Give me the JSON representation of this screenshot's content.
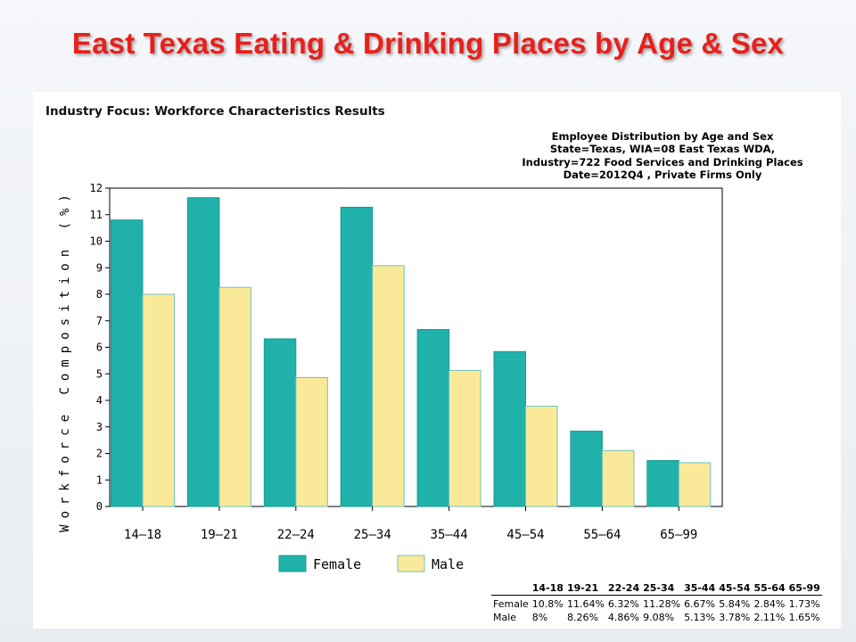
{
  "slide": {
    "title": "East Texas Eating & Drinking Places by Age & Sex"
  },
  "panel": {
    "heading": "Industry Focus: Workforce Characteristics Results"
  },
  "chart_data": {
    "type": "bar",
    "title_lines": [
      "Employee Distribution by Age and Sex",
      "State=Texas, WIA=08 East Texas WDA,",
      "Industry=722 Food Services and Drinking Places",
      "Date=2012Q4 , Private Firms Only"
    ],
    "categories": [
      "14—18",
      "19—21",
      "22—24",
      "25—34",
      "35—44",
      "45—54",
      "55—64",
      "65—99"
    ],
    "series": [
      {
        "name": "Female",
        "color": "#20b2aa",
        "values": [
          10.8,
          11.64,
          6.32,
          11.28,
          6.67,
          5.84,
          2.84,
          1.73
        ]
      },
      {
        "name": "Male",
        "color": "#fbe99a",
        "values": [
          8,
          8.26,
          4.86,
          9.08,
          5.13,
          3.78,
          2.11,
          1.65
        ]
      }
    ],
    "ylabel": "Workforce Composition (%)",
    "xlabel": "",
    "ylim": [
      0,
      12
    ],
    "yticks": [
      "0",
      "1",
      "2",
      "3",
      "4",
      "5",
      "6",
      "7",
      "8",
      "9",
      "10",
      "11",
      "12"
    ],
    "grid": false,
    "legend_position": "bottom"
  },
  "table": {
    "headers": [
      "",
      "14-18",
      "19-21",
      "22-24",
      "25-34",
      "35-44",
      "45-54",
      "55-64",
      "65-99"
    ],
    "rows": [
      {
        "label": "Female",
        "cells": [
          "10.8%",
          "11.64%",
          "6.32%",
          "11.28%",
          "6.67%",
          "5.84%",
          "2.84%",
          "1.73%"
        ]
      },
      {
        "label": "Male",
        "cells": [
          "8%",
          "8.26%",
          "4.86%",
          "9.08%",
          "5.13%",
          "3.78%",
          "2.11%",
          "1.65%"
        ]
      }
    ]
  }
}
